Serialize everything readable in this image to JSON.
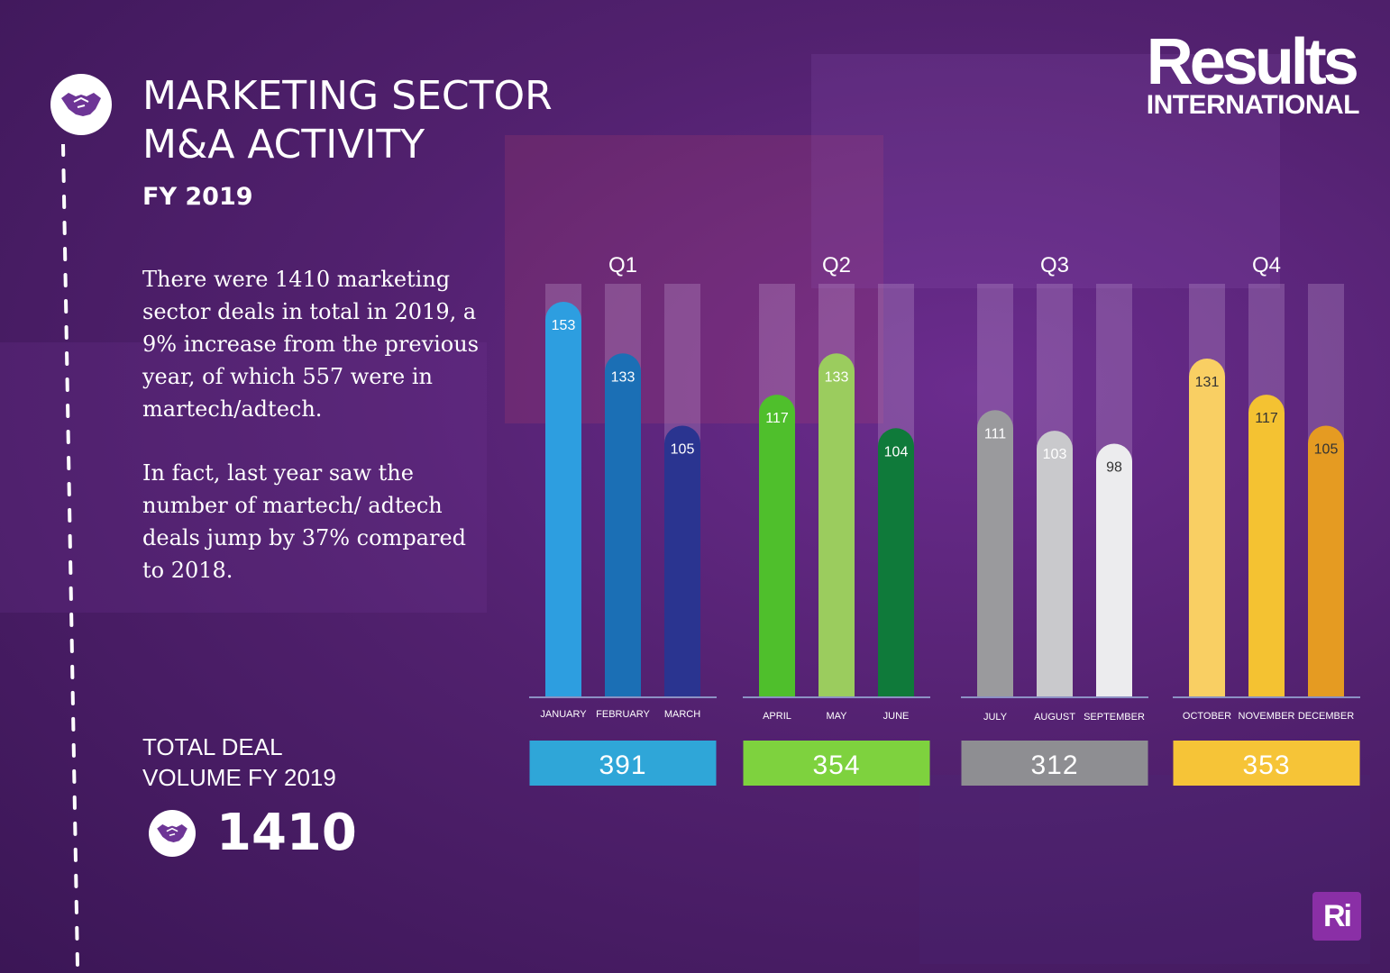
{
  "header": {
    "title_line1": "MARKETING SECTOR",
    "title_line2": "M&A ACTIVITY",
    "subtitle": "FY 2019"
  },
  "body_text": {
    "paragraph1": "There were 1410 marketing sector deals in total in 2019, a 9% increase from the previous year, of which 557 were in martech/adtech.",
    "paragraph2": "In fact, last year saw the number of martech/ adtech deals jump by 37% compared to 2018."
  },
  "totals": {
    "label_line1": "TOTAL DEAL",
    "label_line2": "VOLUME FY 2019",
    "value": "1410"
  },
  "logo": {
    "main": "Results",
    "sub": "INTERNATIONAL",
    "badge": "Ri"
  },
  "icons": {
    "handshake": "handshake-icon"
  },
  "colors": {
    "background": "#52216f",
    "track": "#b08cc4"
  },
  "chart_data": {
    "type": "bar",
    "ylim": [
      0,
      160
    ],
    "quarters": [
      {
        "name": "Q1",
        "total": 391,
        "total_color": "#2fa6d8",
        "months": [
          {
            "label": "JANUARY",
            "value": 153,
            "color": "#2d9ee0"
          },
          {
            "label": "FEBRUARY",
            "value": 133,
            "color": "#1b6fb5"
          },
          {
            "label": "MARCH",
            "value": 105,
            "color": "#2a3490"
          }
        ]
      },
      {
        "name": "Q2",
        "total": 354,
        "total_color": "#7ed23e",
        "months": [
          {
            "label": "APRIL",
            "value": 117,
            "color": "#4fbf2c"
          },
          {
            "label": "MAY",
            "value": 133,
            "color": "#9bcc5e"
          },
          {
            "label": "JUNE",
            "value": 104,
            "color": "#0f7a3a"
          }
        ]
      },
      {
        "name": "Q3",
        "total": 312,
        "total_color": "#8e8e92",
        "months": [
          {
            "label": "JULY",
            "value": 111,
            "color": "#9a9a9d"
          },
          {
            "label": "AUGUST",
            "value": 103,
            "color": "#c9c9cc"
          },
          {
            "label": "SEPTEMBER",
            "value": 98,
            "color": "#ececee"
          }
        ]
      },
      {
        "name": "Q4",
        "total": 353,
        "total_color": "#f6c437",
        "months": [
          {
            "label": "OCTOBER",
            "value": 131,
            "color": "#f9cf63"
          },
          {
            "label": "NOVEMBER",
            "value": 117,
            "color": "#f4c232"
          },
          {
            "label": "DECEMBER",
            "value": 105,
            "color": "#e59b22"
          }
        ]
      }
    ]
  }
}
